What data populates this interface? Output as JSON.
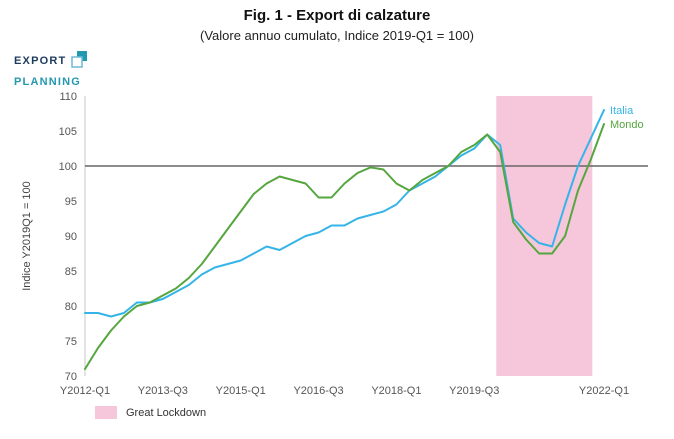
{
  "header": {
    "title": "Fig. 1 - Export di calzature",
    "subtitle": "(Valore annuo cumulato, Indice 2019-Q1 = 100)"
  },
  "logo": {
    "line1": "EXPORT",
    "line2": "PLANNING"
  },
  "chart_data": {
    "type": "line",
    "title": "Fig. 1 - Export di calzature",
    "subtitle": "(Valore annuo cumulato, Indice 2019-Q1 = 100)",
    "ylabel": "Indice Y2019Q1 = 100",
    "ylim": [
      70,
      110
    ],
    "yticks": [
      70,
      75,
      80,
      85,
      90,
      95,
      100,
      105,
      110
    ],
    "x_start_quarter": "2012-Q1",
    "x_end_quarter": "2022-Q1",
    "n_points": 41,
    "xticks": [
      {
        "label": "Y2012-Q1",
        "index": 0
      },
      {
        "label": "Y2013-Q3",
        "index": 6
      },
      {
        "label": "Y2015-Q1",
        "index": 12
      },
      {
        "label": "Y2016-Q3",
        "index": 18
      },
      {
        "label": "Y2018-Q1",
        "index": 24
      },
      {
        "label": "Y2019-Q3",
        "index": 30
      },
      {
        "label": "Y2022-Q1",
        "index": 40
      }
    ],
    "reference_line": {
      "value": 100,
      "color": "#666666"
    },
    "band": {
      "label": "Great Lockdown",
      "from_quarter": "2020-Q1",
      "to_quarter": "2021-Q4",
      "from_index": 31.7,
      "to_index": 39.1,
      "color": "#f6c6db"
    },
    "series": [
      {
        "name": "Italia",
        "color": "#35b4e8",
        "values": [
          79,
          79,
          78.5,
          79,
          80.5,
          80.5,
          81,
          82,
          83,
          84.5,
          85.5,
          86,
          86.5,
          87.5,
          88.5,
          88,
          89,
          90,
          90.5,
          91.5,
          91.5,
          92.5,
          93,
          93.5,
          94.5,
          96.5,
          97.5,
          98.5,
          100,
          101.5,
          102.5,
          104.5,
          103,
          92.5,
          90.5,
          89,
          88.5,
          94.5,
          100,
          104,
          108
        ]
      },
      {
        "name": "Mondo",
        "color": "#55a63e",
        "values": [
          71,
          74,
          76.5,
          78.5,
          80,
          80.5,
          81.5,
          82.5,
          84,
          86,
          88.5,
          91,
          93.5,
          96,
          97.5,
          98.5,
          98,
          97.5,
          95.5,
          95.5,
          97.5,
          99,
          99.8,
          99.5,
          97.5,
          96.5,
          98,
          99,
          100,
          102,
          103,
          104.5,
          102,
          92,
          89.5,
          87.5,
          87.5,
          90,
          96.5,
          101,
          106
        ]
      }
    ],
    "legend": [
      {
        "label": "Great Lockdown",
        "color": "#f6c6db"
      }
    ],
    "axis_text_color": "#555555",
    "axis_line_color": "#c9c9c9",
    "legend_position": "bottom-left",
    "grid": false
  }
}
